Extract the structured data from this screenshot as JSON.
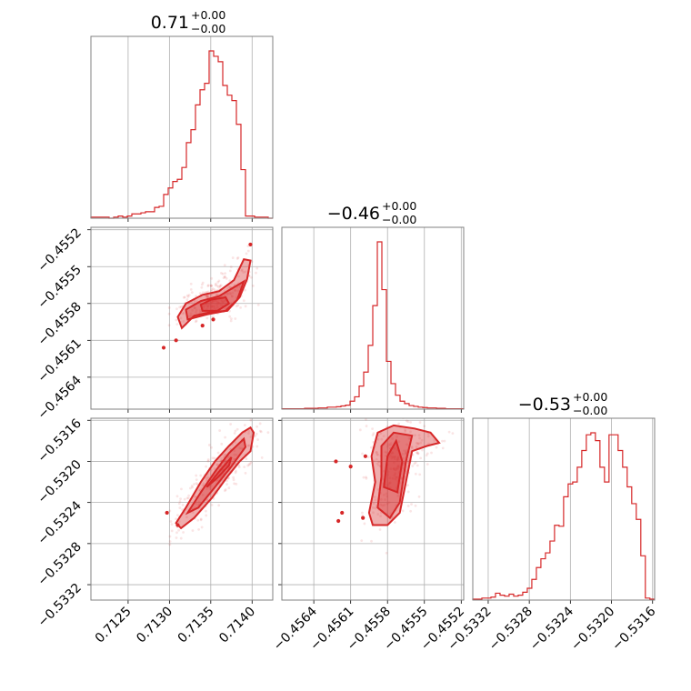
{
  "colors": {
    "series": "#d62728",
    "frame": "#808080",
    "grid": "#b0b0b0"
  },
  "chart_data": {
    "type": "corner",
    "grid": true,
    "parameters": [
      {
        "title": {
          "value": "0.71",
          "plus": "+0.00",
          "minus": "−0.00"
        },
        "range": [
          0.71205,
          0.71425
        ],
        "ticks": [
          0.7125,
          0.713,
          0.7135,
          0.714
        ],
        "tick_labels": [
          "0.7125",
          "0.7130",
          "0.7135",
          "0.7140"
        ],
        "histogram": {
          "edges_start": 0.71205,
          "bin_width": 5.5e-05,
          "counts": [
            1,
            1,
            1,
            1,
            0,
            1,
            2,
            1,
            2,
            4,
            4,
            5,
            6,
            6,
            10,
            11,
            22,
            28,
            34,
            36,
            47,
            70,
            82,
            105,
            119,
            125,
            155,
            150,
            145,
            123,
            114,
            109,
            87,
            45,
            2,
            2,
            1,
            1,
            1,
            0
          ]
        }
      },
      {
        "title": {
          "value": "−0.46",
          "plus": "+0.00",
          "minus": "−0.00"
        },
        "range": [
          -0.45666,
          -0.45518
        ],
        "ticks": [
          -0.4564,
          -0.4561,
          -0.4558,
          -0.4555,
          -0.4552
        ],
        "tick_labels": [
          "−0.4564",
          "−0.4561",
          "−0.4558",
          "−0.4555",
          "−0.4552"
        ],
        "histogram": {
          "edges_start": -0.45666,
          "bin_width": 3.7e-05,
          "counts": [
            1,
            1,
            1,
            1,
            1,
            2,
            2,
            2,
            3,
            3,
            5,
            5,
            6,
            8,
            10,
            20,
            31,
            58,
            93,
            160,
            260,
            420,
            300,
            120,
            64,
            35,
            20,
            14,
            9,
            7,
            5,
            4,
            3,
            3,
            2,
            2,
            1,
            1,
            1,
            1
          ]
        }
      },
      {
        "title": {
          "value": "−0.53",
          "plus": "+0.00",
          "minus": "−0.00"
        },
        "range": [
          -0.53335,
          -0.53158
        ],
        "ticks": [
          -0.5332,
          -0.5328,
          -0.5324,
          -0.532,
          -0.5316
        ],
        "tick_labels": [
          "−0.5332",
          "−0.5328",
          "−0.5324",
          "−0.5320",
          "−0.5316"
        ],
        "histogram": {
          "edges_start": -0.53335,
          "bin_width": 4.42e-05,
          "counts": [
            1,
            1,
            2,
            2,
            3,
            7,
            5,
            4,
            6,
            4,
            5,
            8,
            12,
            21,
            33,
            42,
            48,
            60,
            76,
            75,
            105,
            118,
            120,
            135,
            152,
            168,
            170,
            162,
            135,
            120,
            168,
            168,
            152,
            135,
            115,
            98,
            82,
            45,
            2,
            1
          ]
        }
      }
    ],
    "pairs": [
      {
        "x_param": 0,
        "y_param": 1,
        "correlation": "positive",
        "contours": [
          [
            [
              0.71315,
              -0.456
            ],
            [
              0.7133,
              -0.4559
            ],
            [
              0.7135,
              -0.45587
            ],
            [
              0.7137,
              -0.45586
            ],
            [
              0.71385,
              -0.45575
            ],
            [
              0.71394,
              -0.4556
            ],
            [
              0.71398,
              -0.45545
            ],
            [
              0.7139,
              -0.45544
            ],
            [
              0.71378,
              -0.45561
            ],
            [
              0.7136,
              -0.4557
            ],
            [
              0.7134,
              -0.45573
            ],
            [
              0.7132,
              -0.4558
            ],
            [
              0.7131,
              -0.45591
            ]
          ],
          [
            [
              0.71322,
              -0.45593
            ],
            [
              0.71345,
              -0.45589
            ],
            [
              0.71368,
              -0.45586
            ],
            [
              0.71382,
              -0.45577
            ],
            [
              0.7139,
              -0.45562
            ],
            [
              0.7138,
              -0.45566
            ],
            [
              0.7136,
              -0.45574
            ],
            [
              0.71338,
              -0.45578
            ],
            [
              0.7132,
              -0.45585
            ]
          ],
          [
            [
              0.7134,
              -0.45586
            ],
            [
              0.71358,
              -0.45586
            ],
            [
              0.71372,
              -0.4558
            ],
            [
              0.71368,
              -0.45575
            ],
            [
              0.7135,
              -0.45577
            ],
            [
              0.71338,
              -0.45581
            ]
          ]
        ],
        "outliers": [
          [
            0.71293,
            -0.45616
          ],
          [
            0.71308,
            -0.4561
          ],
          [
            0.7134,
            -0.45598
          ],
          [
            0.71353,
            -0.45593
          ],
          [
            0.71398,
            -0.45532
          ]
        ]
      },
      {
        "x_param": 0,
        "y_param": 2,
        "correlation": "positive",
        "contours": [
          [
            [
              0.71308,
              -0.5326
            ],
            [
              0.7132,
              -0.53245
            ],
            [
              0.71338,
              -0.5322
            ],
            [
              0.71355,
              -0.532
            ],
            [
              0.71372,
              -0.53185
            ],
            [
              0.71388,
              -0.53172
            ],
            [
              0.71398,
              -0.53167
            ],
            [
              0.71402,
              -0.53172
            ],
            [
              0.71398,
              -0.5319
            ],
            [
              0.71385,
              -0.532
            ],
            [
              0.7137,
              -0.53215
            ],
            [
              0.71352,
              -0.53235
            ],
            [
              0.7133,
              -0.53255
            ],
            [
              0.71314,
              -0.53265
            ]
          ],
          [
            [
              0.71322,
              -0.5325
            ],
            [
              0.71338,
              -0.5323
            ],
            [
              0.71355,
              -0.5321
            ],
            [
              0.71372,
              -0.53192
            ],
            [
              0.7139,
              -0.53178
            ],
            [
              0.71392,
              -0.53186
            ],
            [
              0.71375,
              -0.53205
            ],
            [
              0.71355,
              -0.53225
            ],
            [
              0.71335,
              -0.53245
            ]
          ],
          [
            [
              0.71345,
              -0.53225
            ],
            [
              0.7136,
              -0.5321
            ],
            [
              0.71375,
              -0.53196
            ],
            [
              0.71372,
              -0.53204
            ],
            [
              0.71358,
              -0.53216
            ]
          ]
        ],
        "outliers": [
          [
            0.71297,
            -0.5325
          ],
          [
            0.7131,
            -0.53262
          ]
        ]
      },
      {
        "x_param": 1,
        "y_param": 2,
        "correlation": "weak",
        "contours": [
          [
            [
              -0.45595,
              -0.5325
            ],
            [
              -0.4559,
              -0.5322
            ],
            [
              -0.45593,
              -0.53195
            ],
            [
              -0.45588,
              -0.53172
            ],
            [
              -0.45575,
              -0.53165
            ],
            [
              -0.45558,
              -0.53168
            ],
            [
              -0.45545,
              -0.53172
            ],
            [
              -0.45538,
              -0.53182
            ],
            [
              -0.45548,
              -0.53185
            ],
            [
              -0.4556,
              -0.5319
            ],
            [
              -0.45565,
              -0.5322
            ],
            [
              -0.4557,
              -0.5325
            ],
            [
              -0.4558,
              -0.53262
            ],
            [
              -0.45592,
              -0.53262
            ]
          ],
          [
            [
              -0.45588,
              -0.53245
            ],
            [
              -0.45585,
              -0.53215
            ],
            [
              -0.45585,
              -0.53185
            ],
            [
              -0.45575,
              -0.53172
            ],
            [
              -0.4556,
              -0.53175
            ],
            [
              -0.45565,
              -0.532
            ],
            [
              -0.4557,
              -0.5324
            ],
            [
              -0.45578,
              -0.53255
            ]
          ],
          [
            [
              -0.45583,
              -0.53225
            ],
            [
              -0.4558,
              -0.53195
            ],
            [
              -0.45573,
              -0.5318
            ],
            [
              -0.45568,
              -0.532
            ],
            [
              -0.45572,
              -0.5323
            ]
          ]
        ],
        "outliers": [
          [
            -0.45617,
            -0.5325
          ],
          [
            -0.456,
            -0.53255
          ],
          [
            -0.4562,
            -0.53258
          ],
          [
            -0.45598,
            -0.53195
          ],
          [
            -0.4561,
            -0.53205
          ],
          [
            -0.45622,
            -0.532
          ]
        ]
      }
    ]
  }
}
